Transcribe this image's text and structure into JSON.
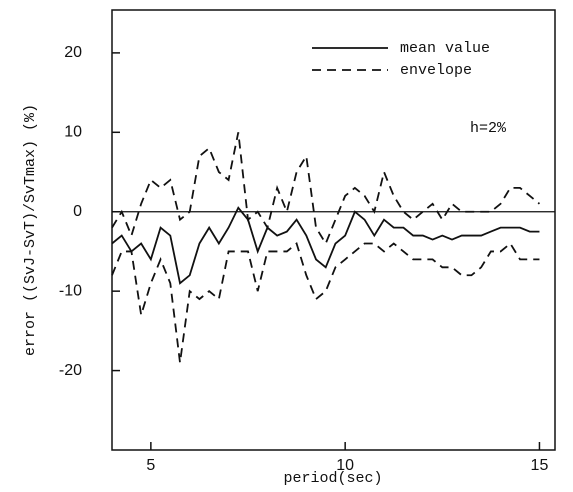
{
  "chart_data": {
    "type": "line",
    "xlabel": "period(sec)",
    "ylabel": "error ((SvJ-SvT)/SvTmax)   (%)",
    "annotation": "h=2%",
    "x": [
      4,
      4.25,
      4.5,
      4.75,
      5,
      5.25,
      5.5,
      5.75,
      6,
      6.25,
      6.5,
      6.75,
      7,
      7.25,
      7.5,
      7.75,
      8,
      8.25,
      8.5,
      8.75,
      9,
      9.25,
      9.5,
      9.75,
      10,
      10.25,
      10.5,
      10.75,
      11,
      11.25,
      11.5,
      11.75,
      12,
      12.25,
      12.5,
      12.75,
      13,
      13.25,
      13.5,
      13.75,
      14,
      14.25,
      14.5,
      14.75,
      15
    ],
    "series": [
      {
        "name": "mean value",
        "color": "#111111",
        "dashed": false,
        "values": [
          -4,
          -3,
          -5,
          -4,
          -6,
          -2,
          -3,
          -9,
          -8,
          -4,
          -2,
          -4,
          -2,
          0.5,
          -1,
          -5,
          -2,
          -3,
          -2.5,
          -1,
          -3,
          -6,
          -7,
          -4,
          -3,
          0,
          -1,
          -3,
          -1,
          -2,
          -2,
          -3,
          -3,
          -3.5,
          -3,
          -3.5,
          -3,
          -3,
          -3,
          -2.5,
          -2,
          -2,
          -2,
          -2.5,
          -2.5
        ]
      },
      {
        "name": "envelope",
        "color": "#111111",
        "dashed": true,
        "values": [
          -2,
          0,
          -3,
          1,
          4,
          3,
          4,
          -1,
          0,
          7,
          8,
          5,
          4,
          10,
          -1,
          0,
          -2,
          3,
          0,
          5,
          7,
          -2,
          -4,
          -1,
          2,
          3,
          2,
          0,
          5,
          2,
          0,
          -1,
          0,
          1,
          -1,
          1,
          0,
          0,
          0,
          0,
          1,
          3,
          3,
          2,
          1
        ],
        "lower": [
          -8,
          -5,
          -5,
          -13,
          -9,
          -6,
          -9,
          -19,
          -10,
          -11,
          -10,
          -11,
          -5,
          -5,
          -5,
          -10,
          -5,
          -5,
          -5,
          -4,
          -8,
          -11,
          -10,
          -7,
          -6,
          -5,
          -4,
          -4,
          -5,
          -4,
          -5,
          -6,
          -6,
          -6,
          -7,
          -7,
          -8,
          -8,
          -7,
          -5,
          -5,
          -4,
          -6,
          -6,
          -6
        ]
      }
    ],
    "hline": 0,
    "xlim": [
      4,
      15.4
    ],
    "ylim": [
      -30,
      25.4
    ],
    "xticks": [
      5,
      10,
      15
    ],
    "yticks": [
      -20,
      -10,
      0,
      10,
      20
    ],
    "legend": "upper right"
  }
}
